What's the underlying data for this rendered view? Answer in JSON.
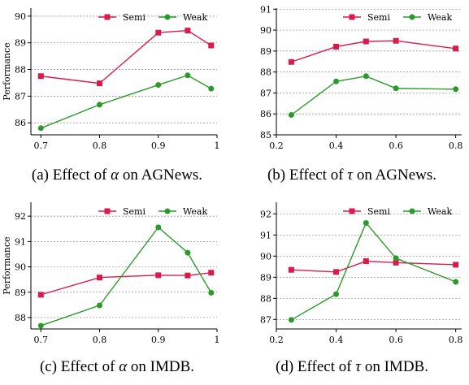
{
  "colors": {
    "semi": "#d81b4a",
    "weak": "#2a9a2a",
    "grid": "#8a8a8a"
  },
  "captions": [
    {
      "prefix": "(a) Effect of ",
      "symbol": "α",
      "suffix": " on AGNews."
    },
    {
      "prefix": "(b) Effect of ",
      "symbol": "τ",
      "suffix": " on AGNews."
    },
    {
      "prefix": "(c) Effect of ",
      "symbol": "α",
      "suffix": " on IMDB."
    },
    {
      "prefix": "(d) Effect of ",
      "symbol": "τ",
      "suffix": " on IMDB."
    }
  ],
  "chart_data": [
    {
      "type": "line",
      "ylabel": "Performance",
      "xlim": [
        0.683,
        1.0
      ],
      "ylim": [
        85.55,
        90.3
      ],
      "xticks": [
        0.7,
        0.8,
        0.9,
        1.0
      ],
      "xtick_labels": [
        "0.7",
        "0.8",
        "0.9",
        "1"
      ],
      "yticks": [
        86,
        87,
        88,
        89,
        90
      ],
      "ytick_labels": [
        "86",
        "87",
        "88",
        "89",
        "90"
      ],
      "legend": "top-right",
      "grid": "horizontal dashed",
      "series": [
        {
          "name": "Semi",
          "marker": "square",
          "x": [
            0.7,
            0.8,
            0.9,
            0.95,
            0.99
          ],
          "y": [
            87.75,
            87.48,
            89.38,
            89.46,
            88.9
          ]
        },
        {
          "name": "Weak",
          "marker": "circle",
          "x": [
            0.7,
            0.8,
            0.9,
            0.95,
            0.99
          ],
          "y": [
            85.8,
            86.68,
            87.42,
            87.78,
            87.28
          ]
        }
      ]
    },
    {
      "type": "line",
      "ylabel": "",
      "xlim": [
        0.2,
        0.82
      ],
      "ylim": [
        85.0,
        91.05
      ],
      "xticks": [
        0.2,
        0.4,
        0.6,
        0.8
      ],
      "xtick_labels": [
        "0.2",
        "0.4",
        "0.6",
        "0.8"
      ],
      "yticks": [
        85,
        86,
        87,
        88,
        89,
        90,
        91
      ],
      "ytick_labels": [
        "85",
        "86",
        "87",
        "88",
        "89",
        "90",
        "91"
      ],
      "legend": "top-right",
      "grid": "horizontal dashed",
      "series": [
        {
          "name": "Semi",
          "marker": "square",
          "x": [
            0.25,
            0.4,
            0.5,
            0.6,
            0.8
          ],
          "y": [
            88.48,
            89.21,
            89.46,
            89.49,
            89.12
          ]
        },
        {
          "name": "Weak",
          "marker": "circle",
          "x": [
            0.25,
            0.4,
            0.5,
            0.6,
            0.8
          ],
          "y": [
            85.95,
            87.55,
            87.8,
            87.22,
            87.18
          ]
        }
      ]
    },
    {
      "type": "line",
      "ylabel": "Performance",
      "xlim": [
        0.683,
        1.0
      ],
      "ylim": [
        87.55,
        92.55
      ],
      "xticks": [
        0.7,
        0.8,
        0.9,
        1.0
      ],
      "xtick_labels": [
        "0.7",
        "0.8",
        "0.9",
        "1"
      ],
      "yticks": [
        88,
        89,
        90,
        91,
        92
      ],
      "ytick_labels": [
        "88",
        "89",
        "90",
        "91",
        "92"
      ],
      "legend": "top-right",
      "grid": "horizontal dashed",
      "series": [
        {
          "name": "Semi",
          "marker": "square",
          "x": [
            0.7,
            0.8,
            0.9,
            0.95,
            0.99
          ],
          "y": [
            88.9,
            89.58,
            89.67,
            89.66,
            89.77
          ]
        },
        {
          "name": "Weak",
          "marker": "circle",
          "x": [
            0.7,
            0.8,
            0.9,
            0.95,
            0.99
          ],
          "y": [
            87.68,
            88.48,
            91.56,
            90.56,
            88.98
          ]
        }
      ]
    },
    {
      "type": "line",
      "ylabel": "",
      "xlim": [
        0.2,
        0.82
      ],
      "ylim": [
        86.55,
        92.55
      ],
      "xticks": [
        0.2,
        0.4,
        0.6,
        0.8
      ],
      "xtick_labels": [
        "0.2",
        "0.4",
        "0.6",
        "0.8"
      ],
      "yticks": [
        87,
        88,
        89,
        90,
        91,
        92
      ],
      "ytick_labels": [
        "87",
        "88",
        "89",
        "90",
        "91",
        "92"
      ],
      "legend": "top-right",
      "grid": "horizontal dashed",
      "series": [
        {
          "name": "Semi",
          "marker": "square",
          "x": [
            0.25,
            0.4,
            0.5,
            0.6,
            0.8
          ],
          "y": [
            89.35,
            89.25,
            89.76,
            89.69,
            89.59
          ]
        },
        {
          "name": "Weak",
          "marker": "circle",
          "x": [
            0.25,
            0.4,
            0.5,
            0.6,
            0.8
          ],
          "y": [
            86.98,
            88.2,
            91.57,
            89.9,
            88.78
          ]
        }
      ]
    }
  ]
}
